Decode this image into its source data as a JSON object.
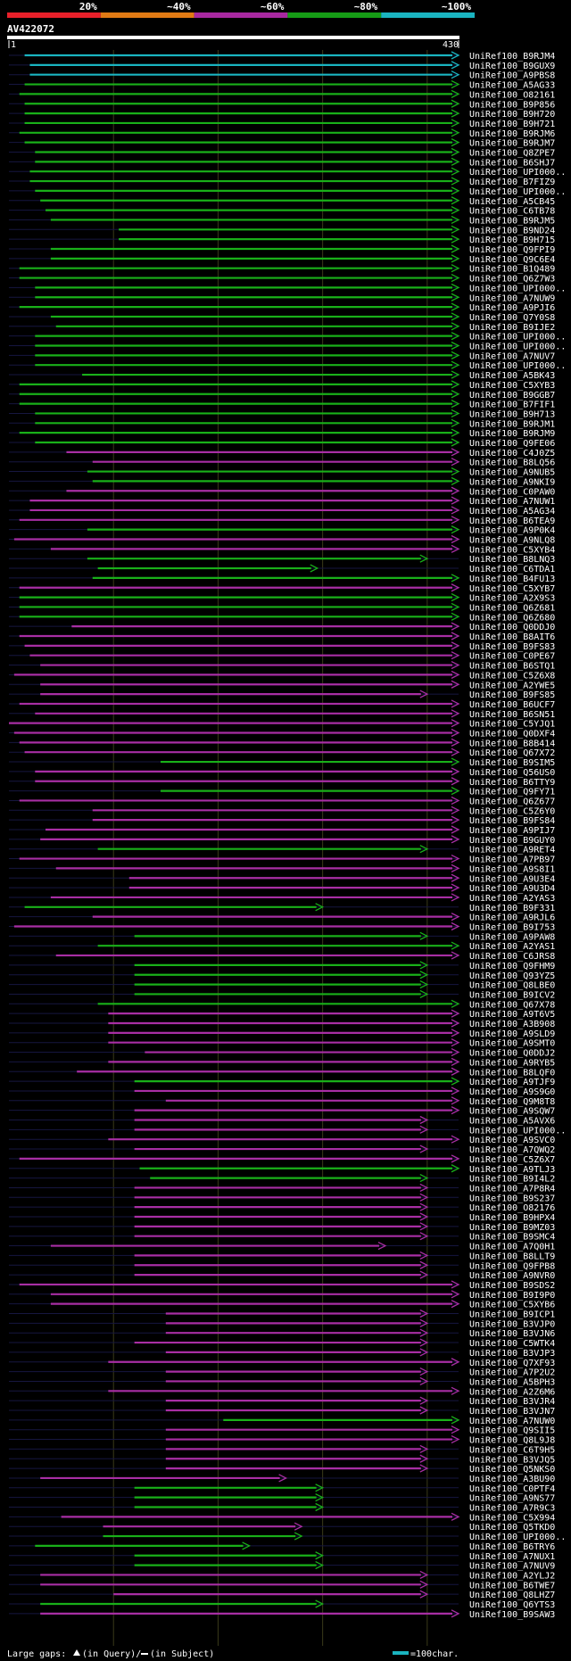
{
  "chart_data": {
    "type": "alignment-overview",
    "query_name": "AV422072",
    "query_start": "1",
    "query_end": "430",
    "query_length": 430,
    "identity_legend": [
      {
        "label": "20%",
        "color": "#e8202a"
      },
      {
        "label": "~40%",
        "color": "#e07a14"
      },
      {
        "label": "~60%",
        "color": "#a828a0"
      },
      {
        "label": "~80%",
        "color": "#169c16"
      },
      {
        "label": "~100%",
        "color": "#1ab4c0"
      }
    ],
    "footer": {
      "gaps_label": "Large gaps:",
      "gap_query_label": "(in Query)/",
      "gap_subject_label": "(in Subject)",
      "scale_label": "=100char."
    },
    "hits": [
      {
        "name": "UniRef100_B9RJM4",
        "start": 15,
        "end": 430,
        "identity": 5
      },
      {
        "name": "UniRef100_B9GUX9",
        "start": 20,
        "end": 430,
        "identity": 5
      },
      {
        "name": "UniRef100_A9PBS8",
        "start": 20,
        "end": 430,
        "identity": 5
      },
      {
        "name": "UniRef100_A5AG33",
        "start": 15,
        "end": 430,
        "identity": 4
      },
      {
        "name": "UniRef100_O82161",
        "start": 10,
        "end": 430,
        "identity": 4
      },
      {
        "name": "UniRef100_B9P856",
        "start": 15,
        "end": 430,
        "identity": 4
      },
      {
        "name": "UniRef100_B9H720",
        "start": 15,
        "end": 430,
        "identity": 4
      },
      {
        "name": "UniRef100_B9H721",
        "start": 15,
        "end": 430,
        "identity": 4
      },
      {
        "name": "UniRef100_B9RJM6",
        "start": 10,
        "end": 430,
        "identity": 4
      },
      {
        "name": "UniRef100_B9RJM7",
        "start": 15,
        "end": 430,
        "identity": 4
      },
      {
        "name": "UniRef100_Q8ZPE7",
        "start": 25,
        "end": 430,
        "identity": 4
      },
      {
        "name": "UniRef100_B6SHJ7",
        "start": 25,
        "end": 430,
        "identity": 4
      },
      {
        "name": "UniRef100_UPI000..",
        "start": 20,
        "end": 430,
        "identity": 4
      },
      {
        "name": "UniRef100_B7FIZ9",
        "start": 20,
        "end": 430,
        "identity": 4
      },
      {
        "name": "UniRef100_UPI000..",
        "start": 25,
        "end": 430,
        "identity": 4
      },
      {
        "name": "UniRef100_A5CB45",
        "start": 30,
        "end": 430,
        "identity": 4
      },
      {
        "name": "UniRef100_C6TB78",
        "start": 35,
        "end": 430,
        "identity": 4
      },
      {
        "name": "UniRef100_B9RJM5",
        "start": 40,
        "end": 430,
        "identity": 4
      },
      {
        "name": "UniRef100_B9ND24",
        "start": 105,
        "end": 430,
        "identity": 4
      },
      {
        "name": "UniRef100_B9H715",
        "start": 105,
        "end": 430,
        "identity": 4
      },
      {
        "name": "UniRef100_Q9FPI9",
        "start": 40,
        "end": 430,
        "identity": 4
      },
      {
        "name": "UniRef100_Q9C6E4",
        "start": 40,
        "end": 430,
        "identity": 4
      },
      {
        "name": "UniRef100_B1Q489",
        "start": 10,
        "end": 430,
        "identity": 4
      },
      {
        "name": "UniRef100_Q6Z7W3",
        "start": 10,
        "end": 430,
        "identity": 4
      },
      {
        "name": "UniRef100_UPI000..",
        "start": 25,
        "end": 430,
        "identity": 4
      },
      {
        "name": "UniRef100_A7NUW9",
        "start": 25,
        "end": 430,
        "identity": 4
      },
      {
        "name": "UniRef100_A9PJI6",
        "start": 10,
        "end": 430,
        "identity": 4
      },
      {
        "name": "UniRef100_Q7Y0S8",
        "start": 40,
        "end": 430,
        "identity": 4
      },
      {
        "name": "UniRef100_B9IJE2",
        "start": 45,
        "end": 430,
        "identity": 4
      },
      {
        "name": "UniRef100_UPI000..",
        "start": 25,
        "end": 430,
        "identity": 4
      },
      {
        "name": "UniRef100_UPI000..",
        "start": 25,
        "end": 430,
        "identity": 4
      },
      {
        "name": "UniRef100_A7NUV7",
        "start": 25,
        "end": 430,
        "identity": 4
      },
      {
        "name": "UniRef100_UPI000..",
        "start": 25,
        "end": 430,
        "identity": 4
      },
      {
        "name": "UniRef100_A5BK43",
        "start": 70,
        "end": 430,
        "identity": 4
      },
      {
        "name": "UniRef100_C5XYB3",
        "start": 10,
        "end": 430,
        "identity": 4
      },
      {
        "name": "UniRef100_B9GGB7",
        "start": 10,
        "end": 430,
        "identity": 4
      },
      {
        "name": "UniRef100_B7FIF1",
        "start": 10,
        "end": 430,
        "identity": 4
      },
      {
        "name": "UniRef100_B9H713",
        "start": 25,
        "end": 430,
        "identity": 4
      },
      {
        "name": "UniRef100_B9RJM1",
        "start": 25,
        "end": 430,
        "identity": 4
      },
      {
        "name": "UniRef100_B9RJM9",
        "start": 10,
        "end": 430,
        "identity": 4
      },
      {
        "name": "UniRef100_Q9FE06",
        "start": 25,
        "end": 430,
        "identity": 4
      },
      {
        "name": "UniRef100_C4J0Z5",
        "start": 55,
        "end": 430,
        "identity": 3
      },
      {
        "name": "UniRef100_B8LQ56",
        "start": 80,
        "end": 430,
        "identity": 3
      },
      {
        "name": "UniRef100_A9NUB5",
        "start": 75,
        "end": 430,
        "identity": 4
      },
      {
        "name": "UniRef100_A9NKI9",
        "start": 80,
        "end": 430,
        "identity": 4
      },
      {
        "name": "UniRef100_C0PAW0",
        "start": 55,
        "end": 430,
        "identity": 3
      },
      {
        "name": "UniRef100_A7NUW1",
        "start": 20,
        "end": 430,
        "identity": 3
      },
      {
        "name": "UniRef100_A5AG34",
        "start": 20,
        "end": 430,
        "identity": 3
      },
      {
        "name": "UniRef100_B6TEA9",
        "start": 10,
        "end": 430,
        "identity": 3
      },
      {
        "name": "UniRef100_A9P0K4",
        "start": 75,
        "end": 430,
        "identity": 4
      },
      {
        "name": "UniRef100_A9NLQ8",
        "start": 5,
        "end": 430,
        "identity": 3
      },
      {
        "name": "UniRef100_C5XYB4",
        "start": 40,
        "end": 430,
        "identity": 3
      },
      {
        "name": "UniRef100_B8LNQ3",
        "start": 75,
        "end": 400,
        "identity": 4
      },
      {
        "name": "UniRef100_C6TDA1",
        "start": 85,
        "end": 295,
        "identity": 4
      },
      {
        "name": "UniRef100_B4FU13",
        "start": 80,
        "end": 430,
        "identity": 4
      },
      {
        "name": "UniRef100_C5XYB7",
        "start": 10,
        "end": 430,
        "identity": 3
      },
      {
        "name": "UniRef100_A2X9S3",
        "start": 10,
        "end": 430,
        "identity": 4
      },
      {
        "name": "UniRef100_Q6Z681",
        "start": 10,
        "end": 430,
        "identity": 4
      },
      {
        "name": "UniRef100_Q6Z680",
        "start": 10,
        "end": 430,
        "identity": 4
      },
      {
        "name": "UniRef100_Q0DDJ0",
        "start": 60,
        "end": 430,
        "identity": 3
      },
      {
        "name": "UniRef100_B8AIT6",
        "start": 10,
        "end": 430,
        "identity": 3
      },
      {
        "name": "UniRef100_B9FS83",
        "start": 15,
        "end": 430,
        "identity": 3
      },
      {
        "name": "UniRef100_C0PE67",
        "start": 20,
        "end": 430,
        "identity": 3
      },
      {
        "name": "UniRef100_B6STQ1",
        "start": 30,
        "end": 430,
        "identity": 3
      },
      {
        "name": "UniRef100_C5Z6X8",
        "start": 5,
        "end": 430,
        "identity": 3
      },
      {
        "name": "UniRef100_A2YWE5",
        "start": 30,
        "end": 430,
        "identity": 3
      },
      {
        "name": "UniRef100_B9FS85",
        "start": 30,
        "end": 400,
        "identity": 3
      },
      {
        "name": "UniRef100_B6UCF7",
        "start": 10,
        "end": 430,
        "identity": 3
      },
      {
        "name": "UniRef100_B6SN51",
        "start": 25,
        "end": 430,
        "identity": 3
      },
      {
        "name": "UniRef100_C5YJQ1",
        "start": 0,
        "end": 430,
        "identity": 3
      },
      {
        "name": "UniRef100_Q0DXF4",
        "start": 5,
        "end": 430,
        "identity": 3
      },
      {
        "name": "UniRef100_B8B414",
        "start": 10,
        "end": 430,
        "identity": 3
      },
      {
        "name": "UniRef100_Q67X72",
        "start": 15,
        "end": 430,
        "identity": 3
      },
      {
        "name": "UniRef100_B9SIM5",
        "start": 145,
        "end": 430,
        "identity": 4
      },
      {
        "name": "UniRef100_Q56US0",
        "start": 25,
        "end": 430,
        "identity": 3
      },
      {
        "name": "UniRef100_B6TTY9",
        "start": 25,
        "end": 430,
        "identity": 3
      },
      {
        "name": "UniRef100_Q9FY71",
        "start": 145,
        "end": 430,
        "identity": 4
      },
      {
        "name": "UniRef100_Q6Z677",
        "start": 10,
        "end": 430,
        "identity": 3
      },
      {
        "name": "UniRef100_C5Z6Y0",
        "start": 80,
        "end": 430,
        "identity": 3
      },
      {
        "name": "UniRef100_B9FS84",
        "start": 80,
        "end": 430,
        "identity": 3
      },
      {
        "name": "UniRef100_A9PIJ7",
        "start": 35,
        "end": 430,
        "identity": 3
      },
      {
        "name": "UniRef100_B9GUY0",
        "start": 30,
        "end": 430,
        "identity": 3
      },
      {
        "name": "UniRef100_A9RET4",
        "start": 85,
        "end": 400,
        "identity": 4
      },
      {
        "name": "UniRef100_A7PB97",
        "start": 10,
        "end": 430,
        "identity": 3
      },
      {
        "name": "UniRef100_A9S8I1",
        "start": 45,
        "end": 430,
        "identity": 3
      },
      {
        "name": "UniRef100_A9U3E4",
        "start": 115,
        "end": 430,
        "identity": 3
      },
      {
        "name": "UniRef100_A9U3D4",
        "start": 115,
        "end": 430,
        "identity": 3
      },
      {
        "name": "UniRef100_A2YAS3",
        "start": 40,
        "end": 430,
        "identity": 3
      },
      {
        "name": "UniRef100_B9F331",
        "start": 15,
        "end": 300,
        "identity": 4
      },
      {
        "name": "UniRef100_A9RJL6",
        "start": 80,
        "end": 430,
        "identity": 3
      },
      {
        "name": "UniRef100_B9I753",
        "start": 5,
        "end": 430,
        "identity": 3
      },
      {
        "name": "UniRef100_A9PAW8",
        "start": 120,
        "end": 400,
        "identity": 4
      },
      {
        "name": "UniRef100_A2YAS1",
        "start": 85,
        "end": 430,
        "identity": 4
      },
      {
        "name": "UniRef100_C6JRS8",
        "start": 45,
        "end": 430,
        "identity": 3
      },
      {
        "name": "UniRef100_Q9FHM9",
        "start": 120,
        "end": 400,
        "identity": 4
      },
      {
        "name": "UniRef100_Q93YZ5",
        "start": 120,
        "end": 400,
        "identity": 4
      },
      {
        "name": "UniRef100_Q8LBE0",
        "start": 120,
        "end": 400,
        "identity": 4
      },
      {
        "name": "UniRef100_B9ICV2",
        "start": 120,
        "end": 400,
        "identity": 4
      },
      {
        "name": "UniRef100_Q67X78",
        "start": 85,
        "end": 430,
        "identity": 4
      },
      {
        "name": "UniRef100_A9T6V5",
        "start": 95,
        "end": 430,
        "identity": 3
      },
      {
        "name": "UniRef100_A3B908",
        "start": 95,
        "end": 430,
        "identity": 3
      },
      {
        "name": "UniRef100_A9SLD9",
        "start": 95,
        "end": 430,
        "identity": 3
      },
      {
        "name": "UniRef100_A9SMT0",
        "start": 95,
        "end": 430,
        "identity": 3
      },
      {
        "name": "UniRef100_Q0DDJ2",
        "start": 130,
        "end": 430,
        "identity": 3
      },
      {
        "name": "UniRef100_A9RYB5",
        "start": 95,
        "end": 430,
        "identity": 3
      },
      {
        "name": "UniRef100_B8LQF0",
        "start": 65,
        "end": 430,
        "identity": 3
      },
      {
        "name": "UniRef100_A9TJF9",
        "start": 120,
        "end": 430,
        "identity": 4
      },
      {
        "name": "UniRef100_A9S9G0",
        "start": 120,
        "end": 430,
        "identity": 3
      },
      {
        "name": "UniRef100_Q9M8T8",
        "start": 150,
        "end": 430,
        "identity": 3
      },
      {
        "name": "UniRef100_A9SQW7",
        "start": 120,
        "end": 430,
        "identity": 3
      },
      {
        "name": "UniRef100_A5AVX6",
        "start": 120,
        "end": 400,
        "identity": 3
      },
      {
        "name": "UniRef100_UPI000..",
        "start": 120,
        "end": 400,
        "identity": 3
      },
      {
        "name": "UniRef100_A9SVC0",
        "start": 95,
        "end": 430,
        "identity": 3
      },
      {
        "name": "UniRef100_A7QWQ2",
        "start": 120,
        "end": 400,
        "identity": 3
      },
      {
        "name": "UniRef100_C5Z6X7",
        "start": 10,
        "end": 430,
        "identity": 3
      },
      {
        "name": "UniRef100_A9TLJ3",
        "start": 125,
        "end": 430,
        "identity": 4
      },
      {
        "name": "UniRef100_B9I4L2",
        "start": 135,
        "end": 400,
        "identity": 4
      },
      {
        "name": "UniRef100_A7P8R4",
        "start": 120,
        "end": 400,
        "identity": 3
      },
      {
        "name": "UniRef100_B9S237",
        "start": 120,
        "end": 400,
        "identity": 3
      },
      {
        "name": "UniRef100_O82176",
        "start": 120,
        "end": 400,
        "identity": 3
      },
      {
        "name": "UniRef100_B9HPX4",
        "start": 120,
        "end": 400,
        "identity": 3
      },
      {
        "name": "UniRef100_B9MZ03",
        "start": 120,
        "end": 400,
        "identity": 3
      },
      {
        "name": "UniRef100_B9SMC4",
        "start": 120,
        "end": 400,
        "identity": 3
      },
      {
        "name": "UniRef100_A7Q0H1",
        "start": 40,
        "end": 360,
        "identity": 3
      },
      {
        "name": "UniRef100_B8LLT9",
        "start": 120,
        "end": 400,
        "identity": 3
      },
      {
        "name": "UniRef100_Q9FPB8",
        "start": 120,
        "end": 400,
        "identity": 3
      },
      {
        "name": "UniRef100_A9NVR0",
        "start": 120,
        "end": 400,
        "identity": 3
      },
      {
        "name": "UniRef100_B9SDS2",
        "start": 10,
        "end": 430,
        "identity": 3
      },
      {
        "name": "UniRef100_B9I9P0",
        "start": 40,
        "end": 430,
        "identity": 3
      },
      {
        "name": "UniRef100_C5XYB6",
        "start": 40,
        "end": 430,
        "identity": 3
      },
      {
        "name": "UniRef100_B9ICP1",
        "start": 150,
        "end": 400,
        "identity": 3
      },
      {
        "name": "UniRef100_B3VJP0",
        "start": 150,
        "end": 400,
        "identity": 3
      },
      {
        "name": "UniRef100_B3VJN6",
        "start": 150,
        "end": 400,
        "identity": 3
      },
      {
        "name": "UniRef100_C5WTK4",
        "start": 120,
        "end": 400,
        "identity": 3
      },
      {
        "name": "UniRef100_B3VJP3",
        "start": 150,
        "end": 400,
        "identity": 3
      },
      {
        "name": "UniRef100_Q7XF93",
        "start": 95,
        "end": 430,
        "identity": 3
      },
      {
        "name": "UniRef100_A7P2U2",
        "start": 150,
        "end": 400,
        "identity": 3
      },
      {
        "name": "UniRef100_A5BPH3",
        "start": 150,
        "end": 400,
        "identity": 3
      },
      {
        "name": "UniRef100_A2Z6M6",
        "start": 95,
        "end": 430,
        "identity": 3
      },
      {
        "name": "UniRef100_B3VJR4",
        "start": 150,
        "end": 400,
        "identity": 3
      },
      {
        "name": "UniRef100_B3VJN7",
        "start": 150,
        "end": 400,
        "identity": 3
      },
      {
        "name": "UniRef100_A7NUW0",
        "start": 205,
        "end": 430,
        "identity": 4
      },
      {
        "name": "UniRef100_Q9SII5",
        "start": 150,
        "end": 430,
        "identity": 3
      },
      {
        "name": "UniRef100_Q8L9J8",
        "start": 150,
        "end": 430,
        "identity": 3
      },
      {
        "name": "UniRef100_C6T9H5",
        "start": 150,
        "end": 400,
        "identity": 3
      },
      {
        "name": "UniRef100_B3VJQ5",
        "start": 150,
        "end": 400,
        "identity": 3
      },
      {
        "name": "UniRef100_Q5NKS0",
        "start": 150,
        "end": 400,
        "identity": 3
      },
      {
        "name": "UniRef100_A3BU90",
        "start": 30,
        "end": 265,
        "identity": 3
      },
      {
        "name": "UniRef100_C0PTF4",
        "start": 120,
        "end": 300,
        "identity": 4
      },
      {
        "name": "UniRef100_A9NS77",
        "start": 120,
        "end": 300,
        "identity": 4
      },
      {
        "name": "UniRef100_A7R9C3",
        "start": 120,
        "end": 300,
        "identity": 4
      },
      {
        "name": "UniRef100_C5X994",
        "start": 50,
        "end": 430,
        "identity": 3
      },
      {
        "name": "UniRef100_Q5TKD0",
        "start": 90,
        "end": 280,
        "identity": 3
      },
      {
        "name": "UniRef100_UPI000..",
        "start": 90,
        "end": 280,
        "identity": 4
      },
      {
        "name": "UniRef100_B6TRY6",
        "start": 25,
        "end": 230,
        "identity": 4
      },
      {
        "name": "UniRef100_A7NUX1",
        "start": 120,
        "end": 300,
        "identity": 4
      },
      {
        "name": "UniRef100_A7NUV9",
        "start": 120,
        "end": 300,
        "identity": 4
      },
      {
        "name": "UniRef100_A2YLJ2",
        "start": 30,
        "end": 400,
        "identity": 3
      },
      {
        "name": "UniRef100_B6TWE7",
        "start": 30,
        "end": 400,
        "identity": 3
      },
      {
        "name": "UniRef100_Q8LHZ7",
        "start": 100,
        "end": 400,
        "identity": 3
      },
      {
        "name": "UniRef100_Q6YTS3",
        "start": 30,
        "end": 300,
        "identity": 4
      },
      {
        "name": "UniRef100_B9SAW3",
        "start": 30,
        "end": 430,
        "identity": 3
      }
    ]
  }
}
